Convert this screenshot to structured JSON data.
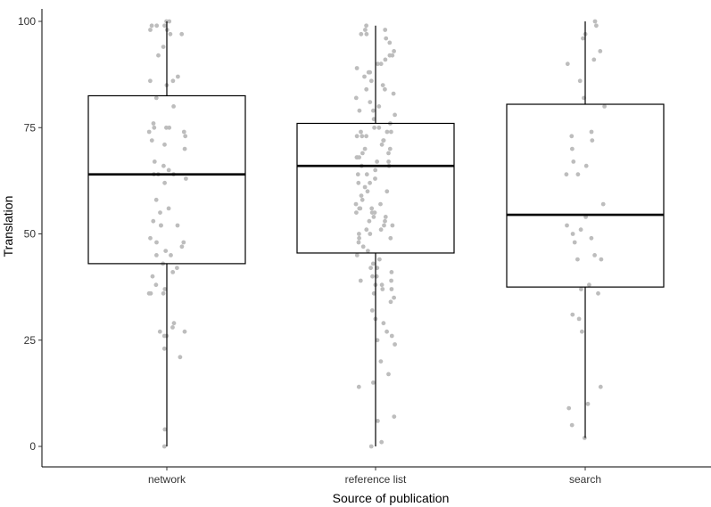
{
  "chart_data": {
    "type": "boxplot",
    "xlabel": "Source of publication",
    "ylabel": "Translation",
    "ylim": [
      0,
      100
    ],
    "yticks": [
      0,
      25,
      50,
      75,
      100
    ],
    "categories": [
      "network",
      "reference list",
      "search"
    ],
    "grid": false,
    "colors": {
      "box": "#000000",
      "points": "#bdbdbd",
      "fill": "#ffffff"
    },
    "boxes": [
      {
        "category": "network",
        "whisker_low": 0,
        "q1": 43,
        "median": 64,
        "q3": 82.5,
        "whisker_high": 100
      },
      {
        "category": "reference list",
        "whisker_low": 0,
        "q1": 45.5,
        "median": 66,
        "q3": 76,
        "whisker_high": 99
      },
      {
        "category": "search",
        "whisker_low": 2,
        "q1": 37.5,
        "median": 54.5,
        "q3": 80.5,
        "whisker_high": 100
      }
    ],
    "points": [
      {
        "category": "network",
        "values": [
          100,
          100,
          99,
          99,
          99,
          98,
          98,
          97,
          97,
          94,
          92,
          87,
          86,
          86,
          85,
          82,
          80,
          76,
          75,
          75,
          75,
          74,
          74,
          73,
          72,
          71,
          70,
          67,
          66,
          65,
          64,
          64,
          64,
          63,
          62,
          58,
          56,
          55,
          53,
          52,
          52,
          52,
          49,
          48,
          48,
          47,
          46,
          45,
          45,
          43,
          42,
          41,
          40,
          38,
          37,
          36,
          36,
          36,
          29,
          28,
          27,
          27,
          26,
          26,
          23,
          21,
          4,
          0
        ]
      },
      {
        "category": "reference list",
        "values": [
          99,
          98,
          98,
          97,
          97,
          96,
          95,
          93,
          92,
          92,
          91,
          90,
          90,
          89,
          88,
          88,
          87,
          86,
          85,
          84,
          84,
          83,
          82,
          81,
          80,
          79,
          79,
          78,
          77,
          76,
          75,
          75,
          74,
          74,
          74,
          73,
          73,
          73,
          72,
          72,
          71,
          70,
          70,
          69,
          69,
          68,
          68,
          68,
          67,
          67,
          66,
          66,
          65,
          64,
          64,
          63,
          62,
          62,
          61,
          60,
          60,
          59,
          58,
          57,
          57,
          56,
          56,
          56,
          55,
          55,
          55,
          54,
          54,
          53,
          53,
          52,
          52,
          51,
          51,
          50,
          50,
          49,
          49,
          48,
          47,
          46,
          45,
          44,
          43,
          42,
          42,
          41,
          40,
          40,
          39,
          39,
          38,
          38,
          37,
          37,
          36,
          35,
          34,
          32,
          30,
          29,
          27,
          26,
          25,
          24,
          20,
          17,
          15,
          14,
          7,
          6,
          1,
          0
        ]
      },
      {
        "category": "search",
        "values": [
          100,
          99,
          97,
          96,
          93,
          91,
          90,
          86,
          82,
          80,
          74,
          73,
          72,
          70,
          67,
          66,
          64,
          64,
          57,
          54,
          52,
          51,
          50,
          49,
          48,
          45,
          44,
          44,
          38,
          37,
          36,
          31,
          30,
          27,
          14,
          10,
          9,
          5,
          2
        ]
      }
    ]
  }
}
